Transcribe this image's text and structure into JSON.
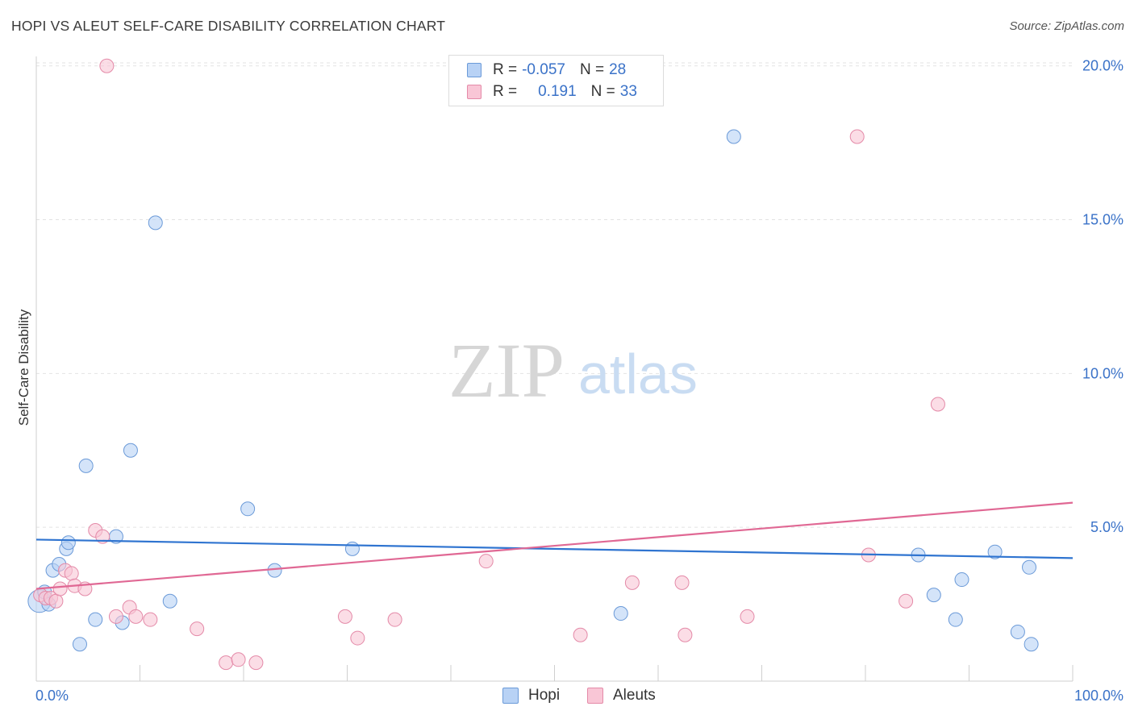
{
  "title": "HOPI VS ALEUT SELF-CARE DISABILITY CORRELATION CHART",
  "source": "Source: ZipAtlas.com",
  "watermark": {
    "zip": "ZIP",
    "atlas": "atlas"
  },
  "legend": {
    "rows": [
      {
        "r_label": "R = ",
        "r_value": "-0.057",
        "n_label": "N = ",
        "n_value": "28",
        "color": "#b8d2f5",
        "border": "#6b9ad8"
      },
      {
        "r_label": "R = ",
        "r_value": "0.191",
        "n_label": "N = ",
        "n_value": "33",
        "color": "#f9c6d6",
        "border": "#e48aa8"
      }
    ]
  },
  "bottom_legend": [
    {
      "label": "Hopi",
      "color": "#b8d2f5",
      "border": "#6b9ad8"
    },
    {
      "label": "Aleuts",
      "color": "#f9c6d6",
      "border": "#e48aa8"
    }
  ],
  "chart_data": {
    "type": "scatter",
    "title": "HOPI VS ALEUT SELF-CARE DISABILITY CORRELATION CHART",
    "xlabel": "",
    "ylabel": "Self-Care Disability",
    "xlim": [
      0,
      100
    ],
    "ylim": [
      0,
      20.5
    ],
    "x_tick_labels": [
      "0.0%",
      "100.0%"
    ],
    "y_ticks": [
      5,
      10,
      15,
      20
    ],
    "y_tick_labels": [
      "5.0%",
      "10.0%",
      "15.0%",
      "20.0%"
    ],
    "grid": true,
    "series": [
      {
        "name": "Hopi",
        "color": "#b8d2f5",
        "stroke": "#6b9ad8",
        "line_color": "#2f74d0",
        "trend": {
          "x": [
            0,
            100
          ],
          "y": [
            4.6,
            4.0
          ]
        },
        "points": [
          {
            "x": 0.3,
            "y": 2.6,
            "size": "large"
          },
          {
            "x": 0.8,
            "y": 2.9
          },
          {
            "x": 1.2,
            "y": 2.5
          },
          {
            "x": 1.6,
            "y": 3.6
          },
          {
            "x": 2.2,
            "y": 3.8
          },
          {
            "x": 2.9,
            "y": 4.3
          },
          {
            "x": 3.1,
            "y": 4.5
          },
          {
            "x": 4.2,
            "y": 1.2
          },
          {
            "x": 4.8,
            "y": 7.0
          },
          {
            "x": 5.7,
            "y": 2.0
          },
          {
            "x": 7.7,
            "y": 4.7
          },
          {
            "x": 8.3,
            "y": 1.9
          },
          {
            "x": 9.1,
            "y": 7.5
          },
          {
            "x": 11.5,
            "y": 14.9
          },
          {
            "x": 12.9,
            "y": 2.6
          },
          {
            "x": 20.4,
            "y": 5.6
          },
          {
            "x": 23.0,
            "y": 3.6
          },
          {
            "x": 30.5,
            "y": 4.3
          },
          {
            "x": 56.4,
            "y": 2.2
          },
          {
            "x": 67.3,
            "y": 17.7
          },
          {
            "x": 85.1,
            "y": 4.1
          },
          {
            "x": 86.6,
            "y": 2.8
          },
          {
            "x": 88.7,
            "y": 2.0
          },
          {
            "x": 89.3,
            "y": 3.3
          },
          {
            "x": 92.5,
            "y": 4.2
          },
          {
            "x": 94.7,
            "y": 1.6
          },
          {
            "x": 95.8,
            "y": 3.7
          },
          {
            "x": 96.0,
            "y": 1.2
          }
        ]
      },
      {
        "name": "Aleuts",
        "color": "#f9c6d6",
        "stroke": "#e48aa8",
        "line_color": "#e06894",
        "trend": {
          "x": [
            0,
            100
          ],
          "y": [
            3.0,
            5.8
          ]
        },
        "points": [
          {
            "x": 0.4,
            "y": 2.8
          },
          {
            "x": 0.9,
            "y": 2.7
          },
          {
            "x": 1.4,
            "y": 2.7
          },
          {
            "x": 1.9,
            "y": 2.6
          },
          {
            "x": 2.3,
            "y": 3.0
          },
          {
            "x": 2.8,
            "y": 3.6
          },
          {
            "x": 3.4,
            "y": 3.5
          },
          {
            "x": 3.7,
            "y": 3.1
          },
          {
            "x": 4.7,
            "y": 3.0
          },
          {
            "x": 5.7,
            "y": 4.9
          },
          {
            "x": 6.4,
            "y": 4.7
          },
          {
            "x": 6.8,
            "y": 20.0
          },
          {
            "x": 7.7,
            "y": 2.1
          },
          {
            "x": 9.0,
            "y": 2.4
          },
          {
            "x": 9.6,
            "y": 2.1
          },
          {
            "x": 11.0,
            "y": 2.0
          },
          {
            "x": 15.5,
            "y": 1.7
          },
          {
            "x": 18.3,
            "y": 0.6
          },
          {
            "x": 19.5,
            "y": 0.7
          },
          {
            "x": 21.2,
            "y": 0.6
          },
          {
            "x": 29.8,
            "y": 2.1
          },
          {
            "x": 31.0,
            "y": 1.4
          },
          {
            "x": 34.6,
            "y": 2.0
          },
          {
            "x": 43.4,
            "y": 3.9
          },
          {
            "x": 52.5,
            "y": 1.5
          },
          {
            "x": 57.5,
            "y": 3.2
          },
          {
            "x": 62.3,
            "y": 3.2
          },
          {
            "x": 62.6,
            "y": 1.5
          },
          {
            "x": 68.6,
            "y": 2.1
          },
          {
            "x": 79.2,
            "y": 17.7
          },
          {
            "x": 80.3,
            "y": 4.1
          },
          {
            "x": 83.9,
            "y": 2.6
          },
          {
            "x": 87.0,
            "y": 9.0
          }
        ]
      }
    ]
  }
}
